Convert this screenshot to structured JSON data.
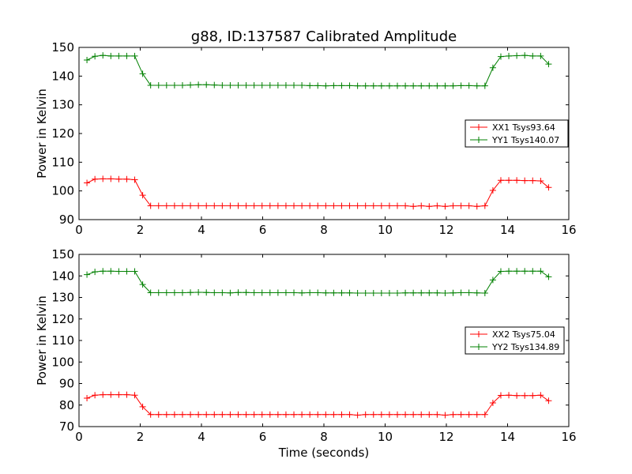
{
  "chart_data": [
    {
      "type": "line",
      "title": "g88, ID:137587 Calibrated Amplitude",
      "xlabel": "",
      "ylabel": "Power in Kelvin",
      "xlim": [
        0,
        16
      ],
      "ylim": [
        90,
        150
      ],
      "xticks": [
        0,
        2,
        4,
        6,
        8,
        10,
        12,
        14,
        16
      ],
      "yticks": [
        90,
        100,
        110,
        120,
        130,
        140,
        150
      ],
      "grid": false,
      "legend_position": "center-right",
      "x": [
        0.26,
        0.52,
        0.78,
        1.04,
        1.3,
        1.56,
        1.82,
        2.08,
        2.34,
        2.6,
        2.86,
        3.12,
        3.38,
        3.64,
        3.9,
        4.16,
        4.42,
        4.68,
        4.94,
        5.2,
        5.46,
        5.72,
        5.98,
        6.24,
        6.5,
        6.76,
        7.02,
        7.28,
        7.54,
        7.8,
        8.06,
        8.32,
        8.58,
        8.84,
        9.1,
        9.36,
        9.62,
        9.88,
        10.14,
        10.4,
        10.66,
        10.92,
        11.18,
        11.44,
        11.7,
        11.96,
        12.22,
        12.48,
        12.74,
        13.0,
        13.26,
        13.52,
        13.78,
        14.04,
        14.3,
        14.56,
        14.82,
        15.08,
        15.34
      ],
      "series": [
        {
          "name": "XX1 Tsys93.64",
          "color": "#ff0000",
          "values": [
            102.8,
            104.1,
            104.2,
            104.2,
            104.1,
            104.1,
            103.9,
            98.5,
            94.8,
            94.8,
            94.8,
            94.8,
            94.8,
            94.8,
            94.8,
            94.8,
            94.8,
            94.8,
            94.8,
            94.8,
            94.8,
            94.8,
            94.8,
            94.8,
            94.8,
            94.8,
            94.8,
            94.8,
            94.8,
            94.8,
            94.8,
            94.8,
            94.8,
            94.8,
            94.8,
            94.8,
            94.8,
            94.8,
            94.8,
            94.8,
            94.8,
            94.6,
            94.8,
            94.6,
            94.8,
            94.6,
            94.8,
            94.8,
            94.8,
            94.6,
            94.8,
            100.2,
            103.7,
            103.7,
            103.7,
            103.6,
            103.6,
            103.5,
            101.2
          ]
        },
        {
          "name": "YY1 Tsys140.07",
          "color": "#008000",
          "values": [
            145.6,
            146.9,
            147.2,
            147.0,
            147.0,
            147.0,
            147.0,
            140.8,
            136.8,
            136.8,
            136.8,
            136.8,
            136.8,
            136.9,
            137.0,
            137.0,
            136.9,
            136.8,
            136.8,
            136.8,
            136.8,
            136.8,
            136.8,
            136.8,
            136.8,
            136.8,
            136.8,
            136.8,
            136.7,
            136.7,
            136.6,
            136.7,
            136.7,
            136.7,
            136.6,
            136.6,
            136.6,
            136.6,
            136.6,
            136.6,
            136.6,
            136.6,
            136.6,
            136.6,
            136.6,
            136.6,
            136.6,
            136.7,
            136.7,
            136.6,
            136.6,
            142.9,
            146.8,
            147.0,
            147.1,
            147.2,
            147.0,
            147.0,
            144.2
          ]
        }
      ]
    },
    {
      "type": "line",
      "title": "",
      "xlabel": "Time (seconds)",
      "ylabel": "Power in Kelvin",
      "xlim": [
        0,
        16
      ],
      "ylim": [
        70,
        150
      ],
      "xticks": [
        0,
        2,
        4,
        6,
        8,
        10,
        12,
        14,
        16
      ],
      "yticks": [
        70,
        80,
        90,
        100,
        110,
        120,
        130,
        140,
        150
      ],
      "grid": false,
      "legend_position": "center-right",
      "x": [
        0.26,
        0.52,
        0.78,
        1.04,
        1.3,
        1.56,
        1.82,
        2.08,
        2.34,
        2.6,
        2.86,
        3.12,
        3.38,
        3.64,
        3.9,
        4.16,
        4.42,
        4.68,
        4.94,
        5.2,
        5.46,
        5.72,
        5.98,
        6.24,
        6.5,
        6.76,
        7.02,
        7.28,
        7.54,
        7.8,
        8.06,
        8.32,
        8.58,
        8.84,
        9.1,
        9.36,
        9.62,
        9.88,
        10.14,
        10.4,
        10.66,
        10.92,
        11.18,
        11.44,
        11.7,
        11.96,
        12.22,
        12.48,
        12.74,
        13.0,
        13.26,
        13.52,
        13.78,
        14.04,
        14.3,
        14.56,
        14.82,
        15.08,
        15.34
      ],
      "series": [
        {
          "name": "XX2 Tsys75.04",
          "color": "#ff0000",
          "values": [
            83.2,
            84.6,
            84.8,
            84.8,
            84.8,
            84.8,
            84.6,
            79.2,
            75.6,
            75.6,
            75.6,
            75.6,
            75.6,
            75.6,
            75.6,
            75.6,
            75.6,
            75.6,
            75.6,
            75.6,
            75.6,
            75.6,
            75.6,
            75.6,
            75.6,
            75.6,
            75.6,
            75.6,
            75.6,
            75.6,
            75.6,
            75.6,
            75.6,
            75.6,
            75.3,
            75.6,
            75.6,
            75.6,
            75.6,
            75.6,
            75.6,
            75.6,
            75.6,
            75.6,
            75.6,
            75.3,
            75.6,
            75.6,
            75.6,
            75.6,
            75.6,
            81.0,
            84.5,
            84.6,
            84.4,
            84.4,
            84.4,
            84.6,
            82.0
          ]
        },
        {
          "name": "YY2 Tsys134.89",
          "color": "#008000",
          "values": [
            140.6,
            141.9,
            142.2,
            142.2,
            142.1,
            142.1,
            142.1,
            136.0,
            132.2,
            132.2,
            132.2,
            132.2,
            132.2,
            132.3,
            132.4,
            132.3,
            132.2,
            132.2,
            132.1,
            132.3,
            132.3,
            132.2,
            132.2,
            132.2,
            132.2,
            132.2,
            132.2,
            132.1,
            132.2,
            132.2,
            132.1,
            132.1,
            132.1,
            132.1,
            132.0,
            132.0,
            132.0,
            132.0,
            132.0,
            132.0,
            132.1,
            132.1,
            132.1,
            132.1,
            132.1,
            132.0,
            132.1,
            132.2,
            132.2,
            132.1,
            132.0,
            138.1,
            142.1,
            142.2,
            142.2,
            142.2,
            142.2,
            142.2,
            139.6
          ]
        }
      ]
    }
  ]
}
